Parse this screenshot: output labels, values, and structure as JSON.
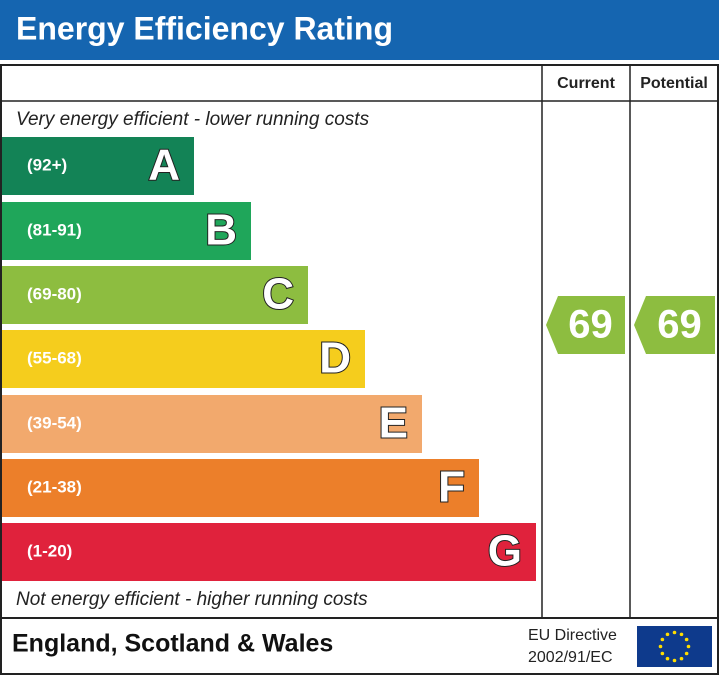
{
  "header": {
    "title": "Energy Efficiency Rating"
  },
  "columns": [
    "Current",
    "Potential"
  ],
  "top_note": "Very energy efficient - lower running costs",
  "bands": [
    {
      "range": "(92+)",
      "letter": "A",
      "color": "#138356"
    },
    {
      "range": "(81-91)",
      "letter": "B",
      "color": "#1fa65a"
    },
    {
      "range": "(69-80)",
      "letter": "C",
      "color": "#8dbd40"
    },
    {
      "range": "(55-68)",
      "letter": "D",
      "color": "#f5cd1d"
    },
    {
      "range": "(39-54)",
      "letter": "E",
      "color": "#f2a96d"
    },
    {
      "range": "(21-38)",
      "letter": "F",
      "color": "#ec7f2a"
    },
    {
      "range": "(1-20)",
      "letter": "G",
      "color": "#e0223c"
    }
  ],
  "bottom_note": "Not energy efficient - higher running costs",
  "ratings": {
    "current": 69,
    "potential": 69,
    "color": "#8dbd40"
  },
  "footer": {
    "region": "England, Scotland & Wales",
    "directive": [
      "EU Directive",
      "2002/91/EC"
    ]
  }
}
